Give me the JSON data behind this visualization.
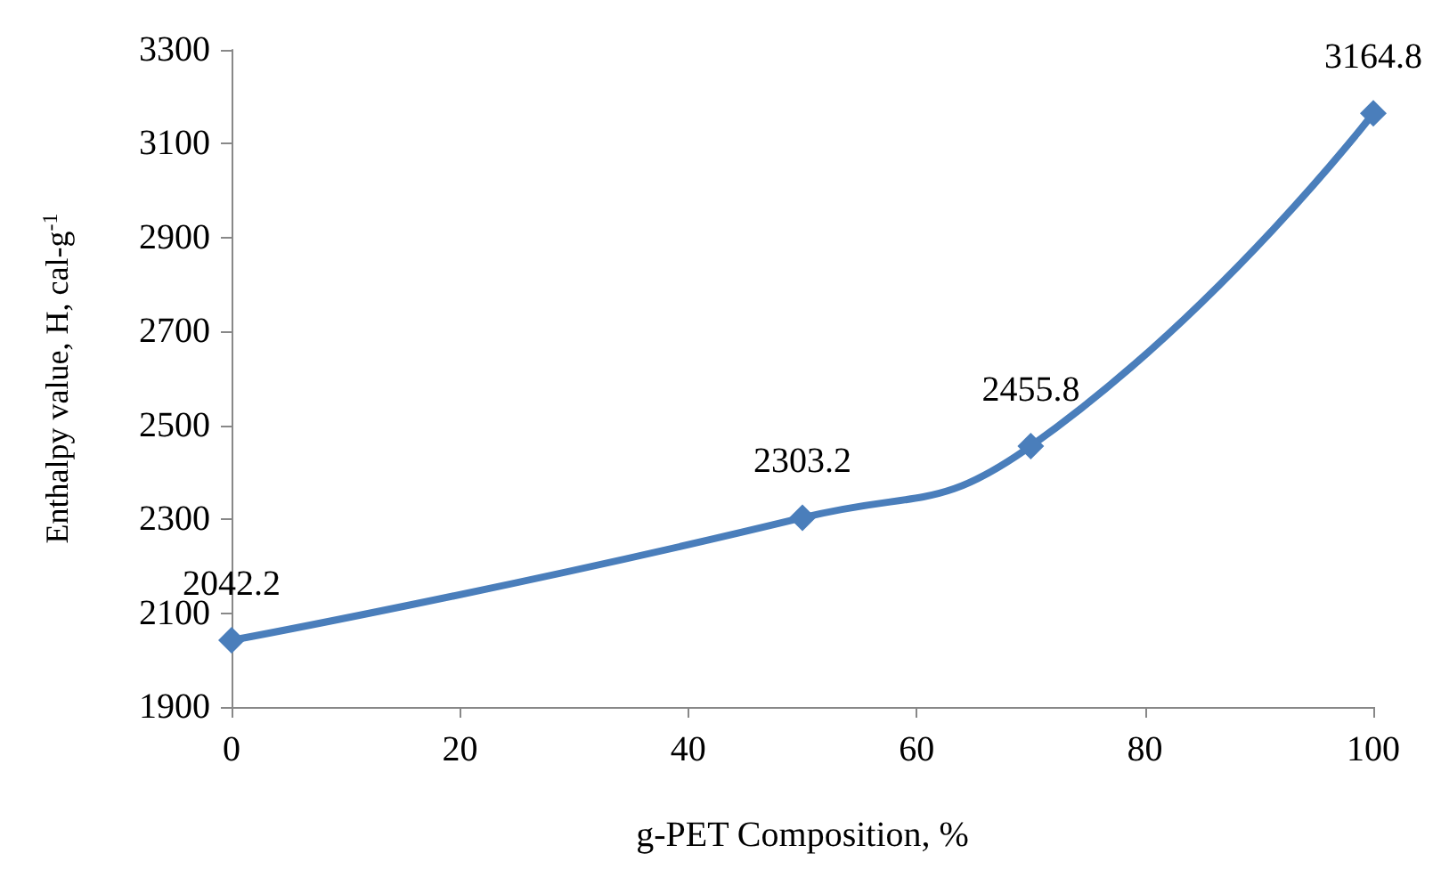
{
  "chart_data": {
    "type": "line",
    "xlabel": "g-PET Composition, %",
    "ylabel": "Enthalpy value, H, cal-g$^{-1}$",
    "x": [
      0,
      50,
      70,
      100
    ],
    "series": [
      {
        "color": "#4a7ebb",
        "values": [
          2042.2,
          2303.2,
          2455.8,
          3164.8
        ]
      }
    ],
    "xlim": [
      0,
      100
    ],
    "xticks": [
      0,
      20,
      40,
      60,
      80,
      100
    ],
    "ylim": [
      1900,
      3300
    ],
    "yticks": [
      1900,
      2100,
      2300,
      2500,
      2700,
      2900,
      3100,
      3300
    ],
    "data_labels": true,
    "marker": "diamond",
    "line_style": "solid",
    "grid": false
  }
}
